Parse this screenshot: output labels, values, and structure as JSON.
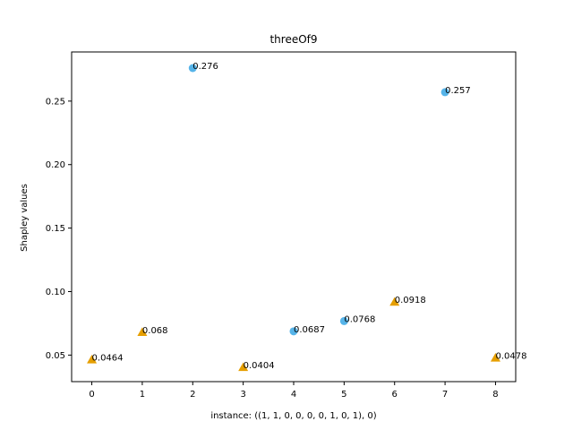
{
  "chart_data": {
    "type": "scatter",
    "title": "threeOf9",
    "xlabel": "instance: ((1, 1, 0, 0, 0, 0, 1, 0, 1), 0)",
    "ylabel": "Shapley values",
    "xlim": [
      -0.4,
      8.4
    ],
    "ylim": [
      0.0291,
      0.2887
    ],
    "x_ticks": [
      0,
      1,
      2,
      3,
      4,
      5,
      6,
      7,
      8
    ],
    "x_tick_labels": [
      "0",
      "1",
      "2",
      "3",
      "4",
      "5",
      "6",
      "7",
      "8"
    ],
    "y_ticks": [
      0.05,
      0.1,
      0.15,
      0.2,
      0.25
    ],
    "y_tick_labels": [
      "0.05",
      "0.10",
      "0.15",
      "0.20",
      "0.25"
    ],
    "grid": false,
    "colors": {
      "circle": "#56B4E9",
      "triangle": "#E69F00"
    },
    "points": [
      {
        "x": 0,
        "y": 0.0464,
        "label": "0.0464",
        "marker": "triangle"
      },
      {
        "x": 1,
        "y": 0.068,
        "label": "0.068",
        "marker": "triangle"
      },
      {
        "x": 2,
        "y": 0.276,
        "label": "0.276",
        "marker": "circle"
      },
      {
        "x": 3,
        "y": 0.0404,
        "label": "0.0404",
        "marker": "triangle"
      },
      {
        "x": 4,
        "y": 0.0687,
        "label": "0.0687",
        "marker": "circle"
      },
      {
        "x": 5,
        "y": 0.0768,
        "label": "0.0768",
        "marker": "circle"
      },
      {
        "x": 6,
        "y": 0.0918,
        "label": "0.0918",
        "marker": "triangle"
      },
      {
        "x": 7,
        "y": 0.257,
        "label": "0.257",
        "marker": "circle"
      },
      {
        "x": 8,
        "y": 0.0478,
        "label": "0.0478",
        "marker": "triangle"
      }
    ]
  }
}
